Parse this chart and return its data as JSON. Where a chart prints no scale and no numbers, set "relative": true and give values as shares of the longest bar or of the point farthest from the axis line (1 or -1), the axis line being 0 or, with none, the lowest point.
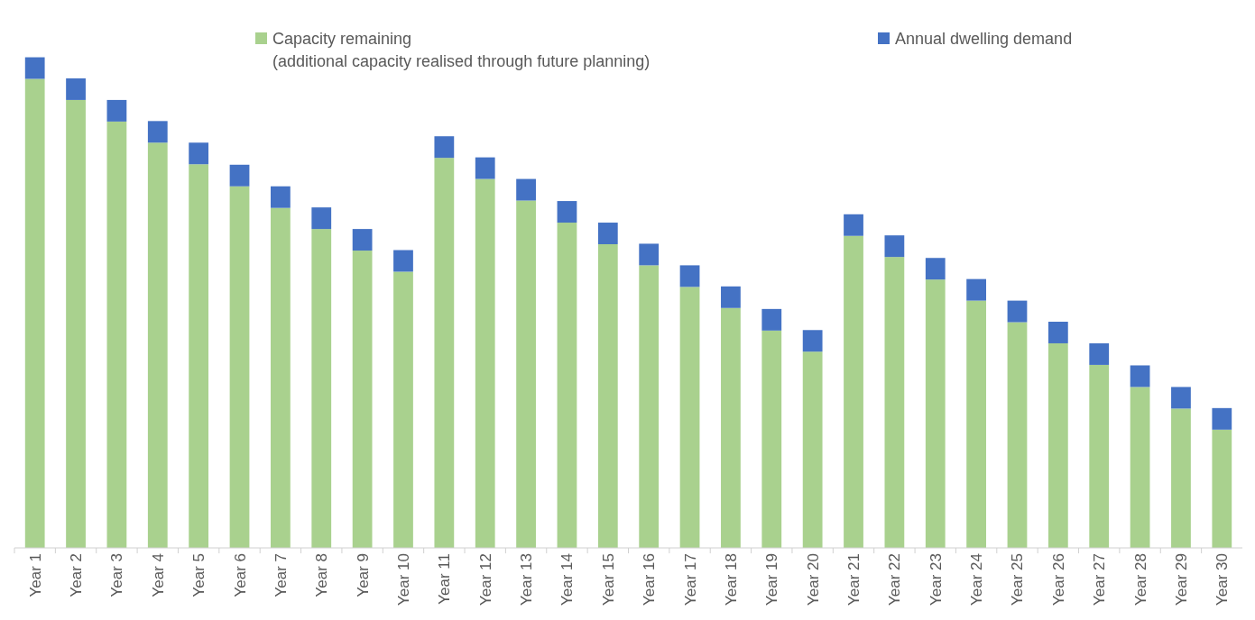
{
  "chart_data": {
    "type": "bar",
    "stacked": true,
    "relative": true,
    "legend": "top",
    "categories": [
      "Year 1",
      "Year 2",
      "Year 3",
      "Year 4",
      "Year 5",
      "Year 6",
      "Year 7",
      "Year 8",
      "Year 9",
      "Year 10",
      "Year 11",
      "Year 12",
      "Year 13",
      "Year 14",
      "Year 15",
      "Year 16",
      "Year 17",
      "Year 18",
      "Year 19",
      "Year 20",
      "Year 21",
      "Year 22",
      "Year 23",
      "Year 24",
      "Year 25",
      "Year 26",
      "Year 27",
      "Year 28",
      "Year 29",
      "Year 30"
    ],
    "series": [
      {
        "name": "Capacity remaining\n(additional capacity realised through future planning)",
        "color": "#a9d18e",
        "values": [
          0.956,
          0.913,
          0.869,
          0.826,
          0.782,
          0.737,
          0.693,
          0.65,
          0.606,
          0.563,
          0.795,
          0.752,
          0.708,
          0.663,
          0.619,
          0.576,
          0.532,
          0.489,
          0.443,
          0.4,
          0.636,
          0.593,
          0.547,
          0.504,
          0.46,
          0.417,
          0.373,
          0.328,
          0.284,
          0.241
        ]
      },
      {
        "name": "Annual dwelling demand",
        "color": "#4472c4",
        "values": [
          0.044,
          0.044,
          0.044,
          0.044,
          0.044,
          0.044,
          0.044,
          0.044,
          0.044,
          0.044,
          0.044,
          0.044,
          0.044,
          0.044,
          0.044,
          0.044,
          0.044,
          0.044,
          0.044,
          0.044,
          0.044,
          0.044,
          0.044,
          0.044,
          0.044,
          0.044,
          0.044,
          0.044,
          0.044,
          0.044
        ]
      }
    ]
  }
}
